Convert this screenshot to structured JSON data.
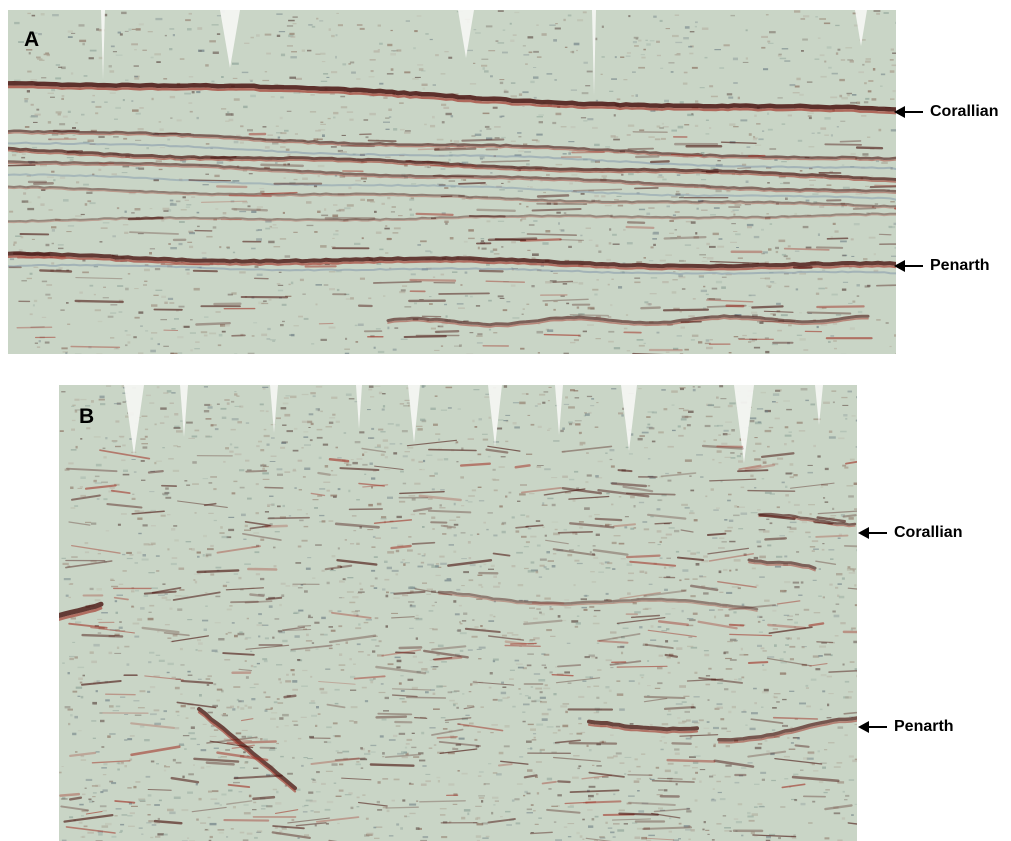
{
  "panels": [
    {
      "label": "A",
      "markers": [
        {
          "label": "Corallian"
        },
        {
          "label": "Penarth"
        }
      ]
    },
    {
      "label": "B",
      "markers": [
        {
          "label": "Corallian"
        },
        {
          "label": "Penarth"
        }
      ]
    }
  ],
  "colors": {
    "background_noise": "#c9d5c6",
    "reflector_dark": "#4a1410",
    "reflector_red": "#a23328",
    "trough_blue": "#7d92a8"
  }
}
